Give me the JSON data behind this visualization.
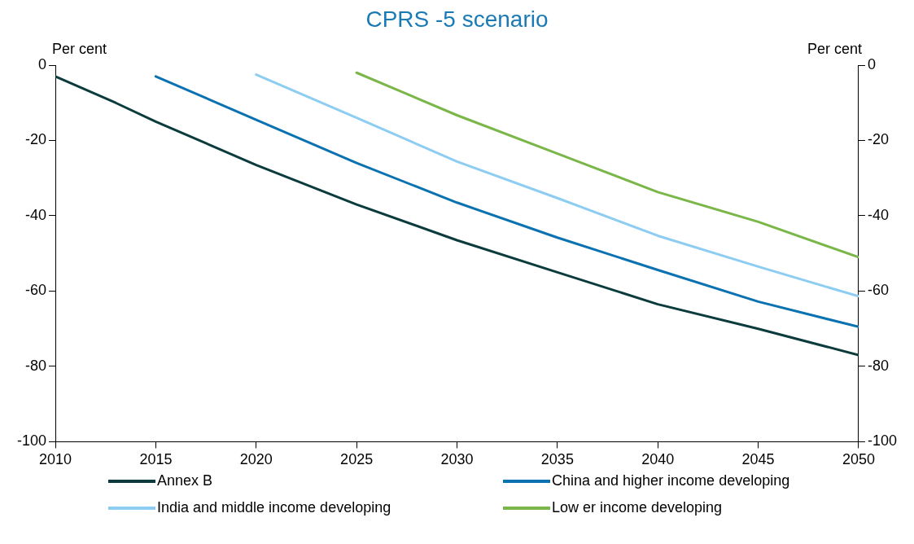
{
  "chart_data": {
    "type": "line",
    "title": "CPRS -5 scenario",
    "ylabel": "Per cent",
    "y2label": "Per cent",
    "xlim": [
      2010,
      2050
    ],
    "xticks": [
      2010,
      2015,
      2020,
      2025,
      2030,
      2035,
      2040,
      2045,
      2050
    ],
    "ylim": [
      -100,
      0
    ],
    "yticks": [
      -100,
      -80,
      -60,
      -40,
      -20,
      0
    ],
    "y2lim": [
      -100,
      0
    ],
    "y2ticks": [
      -100,
      -80,
      -60,
      -40,
      -20,
      0
    ],
    "grid": false,
    "legend": "bottom",
    "marker": "none",
    "line_style": "solid",
    "series": [
      {
        "name": "Annex B",
        "color": "#0b3b3c",
        "x": [
          2010,
          2013,
          2015,
          2020,
          2025,
          2030,
          2035,
          2040,
          2045,
          2050
        ],
        "values": [
          -3,
          -10,
          -15,
          -26.5,
          -37,
          -46.5,
          -55,
          -63.5,
          -70,
          -77
        ]
      },
      {
        "name": "China and higher income developing",
        "color": "#0a72b0",
        "x": [
          2015,
          2020,
          2025,
          2030,
          2035,
          2040,
          2045,
          2050
        ],
        "values": [
          -3,
          -14.5,
          -26,
          -36.5,
          -45.8,
          -54.4,
          -62.8,
          -69.5
        ]
      },
      {
        "name": "India and middle income developing",
        "color": "#8dcdf2",
        "x": [
          2020,
          2025,
          2030,
          2035,
          2040,
          2045,
          2050
        ],
        "values": [
          -2.5,
          -14,
          -25.6,
          -35.3,
          -45.3,
          -53.5,
          -61.4
        ]
      },
      {
        "name": "Low er income developing",
        "color": "#7ab648",
        "x": [
          2025,
          2027,
          2030,
          2035,
          2040,
          2045,
          2050
        ],
        "values": [
          -2,
          -6.5,
          -13.3,
          -23.5,
          -33.7,
          -41.6,
          -51
        ]
      }
    ]
  }
}
